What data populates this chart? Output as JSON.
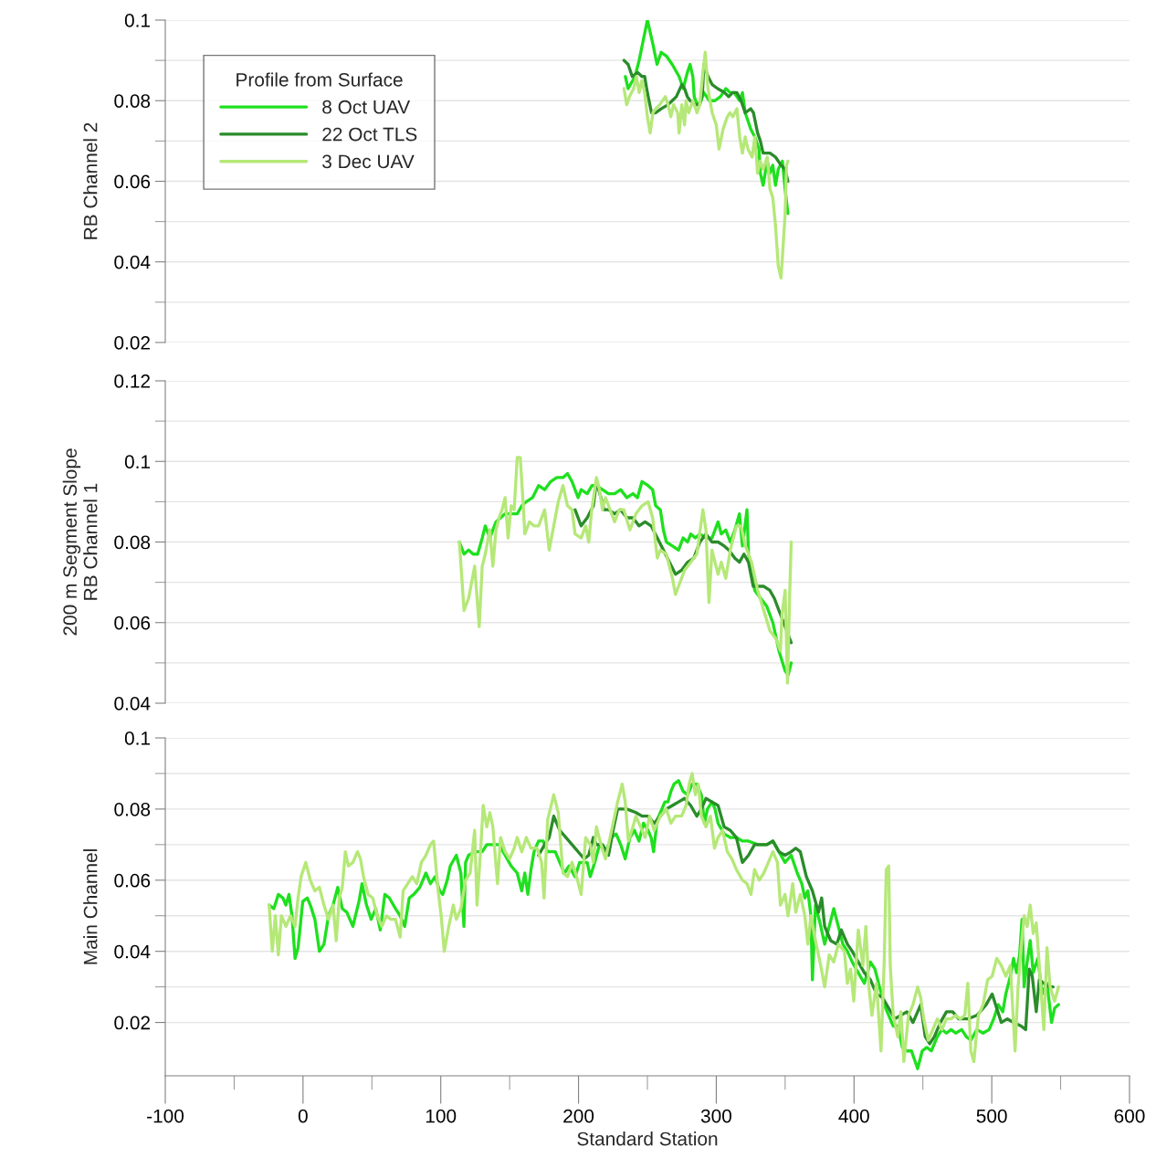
{
  "chart_data": [
    {
      "type": "line",
      "ylabel": "RB Channel 2",
      "xlim": [
        -100,
        600
      ],
      "ylim": [
        0.02,
        0.1
      ],
      "yticks": [
        0.02,
        {
          "value": 0.03,
          "label": null
        },
        0.04,
        {
          "value": 0.05,
          "label": null
        },
        0.06,
        {
          "value": 0.07,
          "label": null
        },
        0.08,
        {
          "value": 0.09,
          "label": null
        },
        0.1
      ],
      "grid": "y",
      "legend": "top left",
      "legend_title": "Profile from Surface",
      "tick_labels": "y",
      "line_style": "solid",
      "marker": "none",
      "series": [
        {
          "name": "8 Oct UAV",
          "color": "#1ee01e",
          "x": [
            234,
            236,
            241,
            244,
            247,
            250,
            254,
            257,
            260,
            264,
            268,
            273,
            276,
            279,
            281,
            283,
            284,
            286,
            289,
            291,
            295,
            299,
            303,
            307,
            310,
            313,
            317,
            319,
            321,
            325,
            328,
            331,
            332,
            334,
            337,
            339,
            341,
            343,
            345,
            348,
            350,
            352
          ],
          "values": [
            0.086,
            0.083,
            0.086,
            0.09,
            0.095,
            0.1,
            0.094,
            0.089,
            0.092,
            0.091,
            0.089,
            0.086,
            0.083,
            0.087,
            0.089,
            0.086,
            0.081,
            0.079,
            0.08,
            0.082,
            0.08,
            0.08,
            0.081,
            0.083,
            0.082,
            0.082,
            0.08,
            0.082,
            0.077,
            0.073,
            0.071,
            0.068,
            0.062,
            0.059,
            0.065,
            0.062,
            0.064,
            0.059,
            0.063,
            0.065,
            0.058,
            0.052
          ]
        },
        {
          "name": "22 Oct TLS",
          "color": "#2a8c2a",
          "x": [
            233,
            236,
            239,
            243,
            246,
            248,
            250,
            253,
            256,
            260,
            265,
            268,
            271,
            275,
            277,
            279,
            281,
            285,
            288,
            290,
            291,
            294,
            297,
            301,
            306,
            309,
            312,
            315,
            318,
            321,
            325,
            327,
            330,
            332,
            334,
            339,
            343,
            347,
            350,
            352
          ],
          "values": [
            0.09,
            0.089,
            0.086,
            0.087,
            0.086,
            0.086,
            0.082,
            0.077,
            0.077,
            0.078,
            0.079,
            0.08,
            0.081,
            0.084,
            0.083,
            0.081,
            0.08,
            0.079,
            0.079,
            0.082,
            0.089,
            0.086,
            0.084,
            0.083,
            0.082,
            0.081,
            0.082,
            0.082,
            0.08,
            0.077,
            0.078,
            0.077,
            0.072,
            0.07,
            0.067,
            0.067,
            0.066,
            0.064,
            0.063,
            0.06
          ]
        },
        {
          "name": "3 Dec UAV",
          "color": "#b5e878",
          "x": [
            233,
            235,
            237,
            240,
            242,
            244,
            246,
            248,
            250,
            252,
            254,
            256,
            259,
            263,
            265,
            267,
            269,
            272,
            273,
            275,
            277,
            278,
            280,
            283,
            286,
            288,
            290,
            292,
            294,
            297,
            300,
            302,
            305,
            308,
            310,
            312,
            315,
            317,
            319,
            321,
            323,
            326,
            328,
            330,
            332,
            334,
            337,
            339,
            341,
            343,
            345,
            347,
            348,
            350,
            351,
            352
          ],
          "values": [
            0.083,
            0.079,
            0.081,
            0.083,
            0.086,
            0.082,
            0.085,
            0.082,
            0.076,
            0.072,
            0.077,
            0.078,
            0.079,
            0.081,
            0.079,
            0.076,
            0.079,
            0.077,
            0.072,
            0.079,
            0.074,
            0.08,
            0.077,
            0.08,
            0.077,
            0.079,
            0.086,
            0.092,
            0.083,
            0.077,
            0.074,
            0.068,
            0.073,
            0.076,
            0.077,
            0.076,
            0.078,
            0.071,
            0.067,
            0.071,
            0.068,
            0.066,
            0.071,
            0.062,
            0.065,
            0.063,
            0.066,
            0.058,
            0.056,
            0.049,
            0.039,
            0.036,
            0.041,
            0.052,
            0.064,
            0.065
          ]
        }
      ]
    },
    {
      "type": "line",
      "ylabel": "200 m Segment Slope\nRB Channel 1",
      "xlim": [
        -100,
        600
      ],
      "ylim": [
        0.04,
        0.12
      ],
      "yticks": [
        0.04,
        {
          "value": 0.05,
          "label": null
        },
        0.06,
        {
          "value": 0.07,
          "label": null
        },
        0.08,
        {
          "value": 0.09,
          "label": null
        },
        0.1,
        {
          "value": 0.11,
          "label": null
        },
        0.12
      ],
      "grid": "y",
      "tick_labels": "y",
      "line_style": "solid",
      "marker": "none",
      "series": [
        {
          "color": "#1ee01e",
          "x": [
            113.5,
            116.9,
            120.2,
            123.5,
            126.8,
            130.1,
            132.3,
            135.6,
            140.1,
            143.4,
            146.7,
            151.1,
            155.5,
            158.8,
            162.1,
            166.6,
            171.0,
            175.4,
            179.8,
            184.2,
            188.7,
            192.0,
            195.3,
            199.7,
            201.9,
            206.3,
            209.7,
            213.0,
            217.4,
            221.8,
            226.2,
            230.6,
            235.1,
            239.5,
            242.8,
            246.1,
            250.5,
            253.8,
            256.0,
            259.4,
            261.6,
            263.8,
            268.2,
            272.6,
            275.9,
            279.2,
            281.5,
            284.8,
            288.1,
            292.5,
            296.9,
            301.3,
            303.6,
            306.9,
            310.2,
            313.5,
            316.8,
            319.0,
            322.3,
            323.4,
            325.6,
            327.9,
            332.3,
            336.7,
            341.1,
            345.5,
            350.0,
            352.2,
            354.4
          ],
          "values": [
            0.08,
            0.077,
            0.078,
            0.077,
            0.077,
            0.081,
            0.084,
            0.081,
            0.085,
            0.086,
            0.087,
            0.087,
            0.087,
            0.089,
            0.09,
            0.091,
            0.094,
            0.093,
            0.095,
            0.096,
            0.096,
            0.097,
            0.095,
            0.091,
            0.093,
            0.092,
            0.094,
            0.094,
            0.093,
            0.092,
            0.092,
            0.093,
            0.091,
            0.092,
            0.091,
            0.095,
            0.094,
            0.093,
            0.089,
            0.088,
            0.083,
            0.08,
            0.079,
            0.078,
            0.081,
            0.08,
            0.082,
            0.081,
            0.082,
            0.081,
            0.081,
            0.085,
            0.082,
            0.083,
            0.08,
            0.083,
            0.087,
            0.079,
            0.088,
            0.077,
            0.073,
            0.068,
            0.066,
            0.064,
            0.06,
            0.053,
            0.048,
            0.047,
            0.05
          ]
        },
        {
          "color": "#2a8c2a",
          "x": [
            197.5,
            201.9,
            206.3,
            210.8,
            213.0,
            216.3,
            218.5,
            221.8,
            226.2,
            230.6,
            235.1,
            239.5,
            243.9,
            248.3,
            252.7,
            257.2,
            261.6,
            266.0,
            270.4,
            274.8,
            279.2,
            283.7,
            288.1,
            292.5,
            296.9,
            301.3,
            305.8,
            309.1,
            313.5,
            316.8,
            320.1,
            323.4,
            326.8,
            330.1,
            334.5,
            338.9,
            342.2,
            345.5,
            348.9,
            352.2,
            354.4
          ],
          "values": [
            0.088,
            0.084,
            0.086,
            0.089,
            0.095,
            0.091,
            0.088,
            0.088,
            0.087,
            0.088,
            0.086,
            0.086,
            0.084,
            0.085,
            0.084,
            0.081,
            0.078,
            0.075,
            0.072,
            0.073,
            0.075,
            0.076,
            0.08,
            0.082,
            0.08,
            0.08,
            0.079,
            0.078,
            0.076,
            0.075,
            0.077,
            0.075,
            0.069,
            0.069,
            0.069,
            0.068,
            0.066,
            0.063,
            0.06,
            0.057,
            0.055
          ]
        },
        {
          "color": "#b5e878",
          "x": [
            113.5,
            116.9,
            120.2,
            124.6,
            127.9,
            130.1,
            132.3,
            135.6,
            137.8,
            140.1,
            142.3,
            144.5,
            146.7,
            148.9,
            151.1,
            153.3,
            155.5,
            157.7,
            159.9,
            161.0,
            164.4,
            167.7,
            171.0,
            175.4,
            178.7,
            182.0,
            185.3,
            188.7,
            192.0,
            195.3,
            197.5,
            201.9,
            205.2,
            207.4,
            209.6,
            213.0,
            215.2,
            217.4,
            219.6,
            222.9,
            226.2,
            229.5,
            232.9,
            237.3,
            241.7,
            246.1,
            250.5,
            253.8,
            257.2,
            259.4,
            263.8,
            268.2,
            270.4,
            272.6,
            277.0,
            281.5,
            285.9,
            290.3,
            292.5,
            294.7,
            296.9,
            299.1,
            301.3,
            303.6,
            306.9,
            310.2,
            314.6,
            317.9,
            321.2,
            325.6,
            330.1,
            334.5,
            338.9,
            343.3,
            346.6,
            347.7,
            350.0,
            351.7,
            353.3,
            354.4
          ],
          "values": [
            0.08,
            0.063,
            0.066,
            0.074,
            0.059,
            0.074,
            0.077,
            0.083,
            0.074,
            0.083,
            0.086,
            0.088,
            0.091,
            0.081,
            0.089,
            0.088,
            0.101,
            0.101,
            0.089,
            0.082,
            0.085,
            0.084,
            0.084,
            0.088,
            0.078,
            0.084,
            0.09,
            0.094,
            0.089,
            0.088,
            0.082,
            0.081,
            0.084,
            0.08,
            0.088,
            0.096,
            0.093,
            0.088,
            0.091,
            0.088,
            0.085,
            0.088,
            0.088,
            0.083,
            0.087,
            0.089,
            0.09,
            0.086,
            0.076,
            0.078,
            0.077,
            0.071,
            0.067,
            0.069,
            0.073,
            0.075,
            0.077,
            0.088,
            0.083,
            0.065,
            0.078,
            0.075,
            0.072,
            0.075,
            0.071,
            0.078,
            0.084,
            0.084,
            0.079,
            0.075,
            0.068,
            0.063,
            0.058,
            0.056,
            0.053,
            0.062,
            0.068,
            0.045,
            0.067,
            0.08
          ]
        }
      ]
    },
    {
      "type": "line",
      "ylabel": "Main Channel",
      "xlabel": "Standard Station",
      "xlim": [
        -100,
        600
      ],
      "ylim": [
        0.005,
        0.1
      ],
      "xticks": [
        -100,
        {
          "value": -50,
          "label": null
        },
        0,
        {
          "value": 50,
          "label": null
        },
        100,
        {
          "value": 150,
          "label": null
        },
        200,
        {
          "value": 250,
          "label": null
        },
        300,
        {
          "value": 350,
          "label": null
        },
        400,
        {
          "value": 450,
          "label": null
        },
        500,
        {
          "value": 550,
          "label": null
        },
        600
      ],
      "yticks": [
        0.02,
        {
          "value": 0.03,
          "label": null
        },
        0.04,
        {
          "value": 0.05,
          "label": null
        },
        0.06,
        {
          "value": 0.07,
          "label": null
        },
        0.08,
        {
          "value": 0.09,
          "label": null
        },
        0.1
      ],
      "grid": "y",
      "line_style": "solid",
      "marker": "none",
      "series": [
        {
          "color": "#1ee01e",
          "x": [
            -24.6,
            -21.2,
            -17.9,
            -14.6,
            -12.4,
            -10.2,
            -8.0,
            -5.8,
            -3.6,
            -0.2,
            3.1,
            5.3,
            8.6,
            11.9,
            15.2,
            18.5,
            21.8,
            25.2,
            28.5,
            31.8,
            36.2,
            40.6,
            42.8,
            46.1,
            49.5,
            52.8,
            56.1,
            59.4,
            62.7,
            67.1,
            70.5,
            73.8,
            77.1,
            80.4,
            84.8,
            89.2,
            92.5,
            95.9,
            99.2,
            101.4,
            104.7,
            106.9,
            111.3,
            114.6,
            116.8,
            118.0,
            120.2,
            124.6,
            130.1,
            133.4,
            137.8,
            142.3,
            146.7,
            151.1,
            155.5,
            158.8,
            161.0,
            163.2,
            165.5,
            167.7,
            171.0,
            174.3,
            177.6,
            183.1,
            186.4,
            189.8,
            193.1,
            197.5,
            200.8,
            206.3,
            208.5,
            211.8,
            215.2,
            219.6,
            224.0,
            227.3,
            230.6,
            233.9,
            237.3,
            240.6,
            243.9,
            247.2,
            250.5,
            252.7,
            254.5,
            257.1,
            260.5,
            262.7,
            264.9,
            267.1,
            269.3,
            272.6,
            275.9,
            279.2,
            282.5,
            285.9,
            289.2,
            291.4,
            293.6,
            296.9,
            299.1,
            301.3,
            305.7,
            310.2,
            314.6,
            319.0,
            323.4,
            330.1,
            336.7,
            341.1,
            345.5,
            349.9,
            354.4,
            358.8,
            362.1,
            364.3,
            366.5,
            368.7,
            369.8,
            372.0,
            375.3,
            378.7,
            382.0,
            385.3,
            388.6,
            391.9,
            395.2,
            398.7,
            403.1,
            407.5,
            411.9,
            415.2,
            418.5,
            421.9,
            425.2,
            428.5,
            431.8,
            435.1,
            438.4,
            441.7,
            446.2,
            449.5,
            452.8,
            456.1,
            460.5,
            463.8,
            467.1,
            470.5,
            473.8,
            478.2,
            481.5,
            484.8,
            489.2,
            493.7,
            498.1,
            501.4,
            504.7,
            508.0,
            510.2,
            513.5,
            515.8,
            518.0,
            520.2,
            522.0,
            523.5,
            525.7,
            527.9,
            530.1,
            533.4,
            536.7,
            540.1,
            543.4,
            545.6,
            548.5
          ],
          "values": [
            0.053,
            0.052,
            0.056,
            0.055,
            0.053,
            0.056,
            0.05,
            0.038,
            0.041,
            0.054,
            0.055,
            0.053,
            0.049,
            0.04,
            0.042,
            0.05,
            0.053,
            0.058,
            0.052,
            0.051,
            0.047,
            0.054,
            0.059,
            0.053,
            0.049,
            0.052,
            0.046,
            0.056,
            0.055,
            0.052,
            0.05,
            0.047,
            0.055,
            0.056,
            0.058,
            0.062,
            0.059,
            0.061,
            0.057,
            0.056,
            0.06,
            0.064,
            0.067,
            0.062,
            0.047,
            0.065,
            0.067,
            0.068,
            0.068,
            0.07,
            0.07,
            0.07,
            0.067,
            0.064,
            0.062,
            0.057,
            0.062,
            0.056,
            0.063,
            0.068,
            0.071,
            0.071,
            0.068,
            0.068,
            0.065,
            0.062,
            0.064,
            0.061,
            0.065,
            0.065,
            0.061,
            0.065,
            0.07,
            0.068,
            0.072,
            0.073,
            0.07,
            0.066,
            0.072,
            0.074,
            0.071,
            0.076,
            0.074,
            0.072,
            0.068,
            0.077,
            0.08,
            0.082,
            0.082,
            0.085,
            0.087,
            0.088,
            0.085,
            0.084,
            0.087,
            0.087,
            0.084,
            0.076,
            0.08,
            0.082,
            0.08,
            0.076,
            0.073,
            0.072,
            0.072,
            0.071,
            0.071,
            0.07,
            0.07,
            0.071,
            0.068,
            0.065,
            0.067,
            0.062,
            0.059,
            0.055,
            0.057,
            0.05,
            0.032,
            0.053,
            0.048,
            0.042,
            0.047,
            0.052,
            0.047,
            0.042,
            0.04,
            0.037,
            0.034,
            0.031,
            0.037,
            0.035,
            0.03,
            0.025,
            0.022,
            0.019,
            0.019,
            0.013,
            0.012,
            0.012,
            0.007,
            0.012,
            0.013,
            0.012,
            0.016,
            0.018,
            0.017,
            0.018,
            0.017,
            0.018,
            0.016,
            0.015,
            0.018,
            0.017,
            0.018,
            0.021,
            0.025,
            0.023,
            0.028,
            0.033,
            0.038,
            0.034,
            0.039,
            0.049,
            0.03,
            0.037,
            0.043,
            0.034,
            0.038,
            0.028,
            0.031,
            0.02,
            0.024,
            0.025
          ]
        },
        {
          "color": "#2a8c2a",
          "x": [
            171.0,
            175.4,
            178.7,
            182.0,
            186.4,
            190.9,
            195.3,
            201.9,
            204.1,
            207.4,
            210.7,
            213.0,
            217.4,
            221.8,
            225.1,
            228.4,
            235.0,
            241.7,
            246.1,
            250.5,
            254.9,
            259.4,
            263.8,
            268.2,
            272.6,
            277.0,
            281.4,
            285.9,
            289.2,
            292.5,
            296.9,
            301.3,
            305.7,
            310.2,
            314.6,
            319.0,
            323.4,
            327.8,
            332.3,
            336.7,
            341.1,
            345.5,
            349.9,
            354.4,
            357.7,
            361.0,
            365.4,
            369.8,
            374.2,
            376.5,
            378.7,
            383.1,
            387.5,
            390.8,
            395.2,
            398.7,
            403.1,
            407.5,
            411.9,
            416.3,
            420.7,
            425.2,
            429.6,
            434.0,
            438.4,
            442.8,
            448.4,
            451.7,
            455.0,
            458.3,
            462.7,
            467.1,
            471.6,
            476.0,
            482.6,
            489.2,
            495.9,
            500.3,
            503.6,
            506.9,
            511.3,
            515.8,
            521.3,
            524.6,
            525.7,
            527.2,
            529.4,
            532.3,
            534.5,
            537.8,
            541.2,
            544.5
          ],
          "values": [
            0.067,
            0.07,
            0.072,
            0.078,
            0.074,
            0.072,
            0.07,
            0.067,
            0.066,
            0.067,
            0.072,
            0.07,
            0.07,
            0.067,
            0.074,
            0.08,
            0.08,
            0.079,
            0.078,
            0.078,
            0.076,
            0.078,
            0.08,
            0.081,
            0.082,
            0.083,
            0.081,
            0.078,
            0.08,
            0.083,
            0.082,
            0.081,
            0.075,
            0.074,
            0.072,
            0.065,
            0.067,
            0.07,
            0.07,
            0.07,
            0.071,
            0.068,
            0.067,
            0.068,
            0.069,
            0.068,
            0.061,
            0.057,
            0.051,
            0.055,
            0.047,
            0.043,
            0.042,
            0.046,
            0.042,
            0.04,
            0.037,
            0.034,
            0.032,
            0.028,
            0.027,
            0.024,
            0.021,
            0.022,
            0.023,
            0.02,
            0.025,
            0.016,
            0.014,
            0.016,
            0.02,
            0.023,
            0.023,
            0.021,
            0.021,
            0.022,
            0.025,
            0.028,
            0.024,
            0.02,
            0.021,
            0.02,
            0.019,
            0.018,
            0.025,
            0.035,
            0.033,
            0.023,
            0.032,
            0.031,
            0.03,
            0.03
          ]
        },
        {
          "color": "#b5e878",
          "x": [
            -24.6,
            -22.3,
            -20.1,
            -17.9,
            -15.7,
            -12.4,
            -9.1,
            -5.8,
            -3.6,
            -1.4,
            2.0,
            5.3,
            8.6,
            11.9,
            15.2,
            18.5,
            21.8,
            24.1,
            26.3,
            28.5,
            30.7,
            32.9,
            36.2,
            39.5,
            41.7,
            43.9,
            47.3,
            50.6,
            53.9,
            57.2,
            60.5,
            63.8,
            67.1,
            70.5,
            72.7,
            76.0,
            79.3,
            82.6,
            85.9,
            89.2,
            92.5,
            94.8,
            98.1,
            100.3,
            102.5,
            105.8,
            109.1,
            111.3,
            114.6,
            118.0,
            121.3,
            124.6,
            126.3,
            129.0,
            130.8,
            133.4,
            135.6,
            137.8,
            141.2,
            143.4,
            146.7,
            150.0,
            153.3,
            155.5,
            158.8,
            162.1,
            165.5,
            169.9,
            173.2,
            175.0,
            177.6,
            182.0,
            185.3,
            188.7,
            192.0,
            195.3,
            198.6,
            201.9,
            205.2,
            208.5,
            210.7,
            213.0,
            216.3,
            219.6,
            221.8,
            225.1,
            228.4,
            231.7,
            233.9,
            236.2,
            239.5,
            241.7,
            245.0,
            248.3,
            251.6,
            254.9,
            259.4,
            263.8,
            267.1,
            270.4,
            274.8,
            278.1,
            280.3,
            282.5,
            284.8,
            287.0,
            289.2,
            292.5,
            295.8,
            298.7,
            301.3,
            304.6,
            308.0,
            311.3,
            314.6,
            319.0,
            322.3,
            325.2,
            327.8,
            331.2,
            334.5,
            337.8,
            341.1,
            344.4,
            346.6,
            349.9,
            352.1,
            355.5,
            357.7,
            361.0,
            364.3,
            366.5,
            368.7,
            372.0,
            375.3,
            378.7,
            382.0,
            385.3,
            388.6,
            393.0,
            395.2,
            397.5,
            399.8,
            403.1,
            406.4,
            408.6,
            410.8,
            413.0,
            416.3,
            419.6,
            421.9,
            423.4,
            425.2,
            426.3,
            428.5,
            431.8,
            434.0,
            436.2,
            439.5,
            442.8,
            446.2,
            448.4,
            450.6,
            453.9,
            457.2,
            460.5,
            463.8,
            467.1,
            470.5,
            473.8,
            477.1,
            480.4,
            482.6,
            484.8,
            487.0,
            490.3,
            493.7,
            497.0,
            500.3,
            503.6,
            506.9,
            510.2,
            513.5,
            516.9,
            519.1,
            521.3,
            523.5,
            525.7,
            527.9,
            530.1,
            532.3,
            534.5,
            537.8,
            540.1,
            542.3,
            545.6,
            548.5
          ],
          "values": [
            0.053,
            0.04,
            0.05,
            0.039,
            0.05,
            0.047,
            0.05,
            0.047,
            0.055,
            0.061,
            0.065,
            0.06,
            0.057,
            0.058,
            0.053,
            0.049,
            0.053,
            0.043,
            0.055,
            0.058,
            0.068,
            0.064,
            0.065,
            0.068,
            0.066,
            0.061,
            0.056,
            0.055,
            0.05,
            0.047,
            0.05,
            0.049,
            0.049,
            0.044,
            0.057,
            0.059,
            0.061,
            0.059,
            0.065,
            0.067,
            0.07,
            0.071,
            0.057,
            0.05,
            0.04,
            0.047,
            0.053,
            0.049,
            0.052,
            0.06,
            0.062,
            0.074,
            0.053,
            0.069,
            0.081,
            0.075,
            0.079,
            0.075,
            0.059,
            0.072,
            0.068,
            0.066,
            0.069,
            0.072,
            0.068,
            0.072,
            0.069,
            0.069,
            0.065,
            0.055,
            0.077,
            0.084,
            0.079,
            0.062,
            0.061,
            0.065,
            0.061,
            0.056,
            0.072,
            0.07,
            0.065,
            0.075,
            0.07,
            0.066,
            0.07,
            0.076,
            0.082,
            0.087,
            0.082,
            0.071,
            0.075,
            0.078,
            0.075,
            0.072,
            0.078,
            0.074,
            0.078,
            0.08,
            0.076,
            0.078,
            0.078,
            0.081,
            0.087,
            0.09,
            0.084,
            0.087,
            0.078,
            0.075,
            0.078,
            0.069,
            0.072,
            0.074,
            0.068,
            0.066,
            0.063,
            0.06,
            0.059,
            0.056,
            0.063,
            0.06,
            0.062,
            0.065,
            0.068,
            0.065,
            0.053,
            0.056,
            0.05,
            0.059,
            0.051,
            0.056,
            0.05,
            0.042,
            0.05,
            0.043,
            0.037,
            0.03,
            0.039,
            0.037,
            0.042,
            0.04,
            0.031,
            0.035,
            0.026,
            0.046,
            0.036,
            0.047,
            0.03,
            0.022,
            0.031,
            0.012,
            0.037,
            0.063,
            0.064,
            0.036,
            0.022,
            0.016,
            0.023,
            0.009,
            0.022,
            0.025,
            0.03,
            0.027,
            0.021,
            0.015,
            0.018,
            0.021,
            0.018,
            0.021,
            0.021,
            0.022,
            0.021,
            0.022,
            0.031,
            0.012,
            0.009,
            0.022,
            0.025,
            0.032,
            0.033,
            0.038,
            0.036,
            0.033,
            0.036,
            0.012,
            0.03,
            0.041,
            0.05,
            0.047,
            0.053,
            0.045,
            0.048,
            0.036,
            0.018,
            0.041,
            0.03,
            0.026,
            0.03
          ]
        }
      ]
    }
  ]
}
